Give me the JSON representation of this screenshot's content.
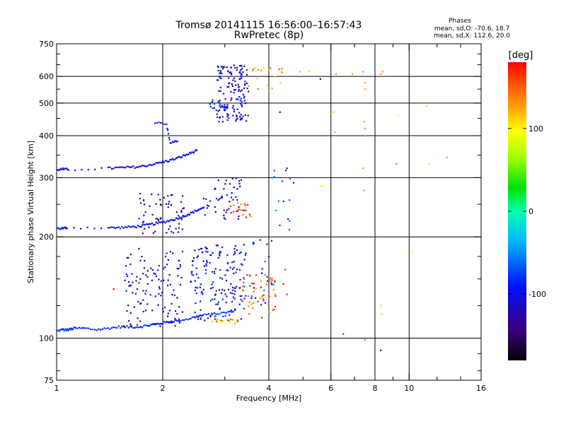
{
  "chart_data": {
    "type": "scatter",
    "title": "Tromsø 20141115 16:56:00–16:57:43",
    "subtitle": "RwPretec (8p)",
    "xlabel": "Frequency [MHz]",
    "ylabel": "Stationary phase Virtual Height [km]",
    "x_scale": "log",
    "y_scale": "log",
    "xlim": [
      1,
      16
    ],
    "ylim": [
      75,
      750
    ],
    "x_ticks": [
      1,
      2,
      4,
      6,
      8,
      10,
      16
    ],
    "y_ticks": [
      75,
      100,
      200,
      300,
      400,
      500,
      600,
      750
    ],
    "x_minor_ticks": [
      3,
      5,
      7,
      9,
      12,
      14
    ],
    "y_minor_ticks": [
      80,
      90,
      125,
      150,
      175,
      250,
      350,
      450,
      550,
      650,
      700
    ],
    "grid": true,
    "grid_x": [
      2,
      4,
      6,
      8,
      10
    ],
    "grid_y": [
      100,
      200,
      300,
      400,
      500,
      600
    ],
    "phases_box": {
      "title": "Phases",
      "line1": "mean, sd,O: -70.6, 18.7",
      "line2": "mean, sd,X: 112.6, 20.0"
    },
    "colorbar": {
      "label": "[deg]",
      "range": [
        -180,
        180
      ],
      "ticks": [
        -100,
        0,
        100
      ],
      "colors": [
        "#000000",
        "#3a0078",
        "#0010ff",
        "#00b8ff",
        "#00ffb0",
        "#00e000",
        "#a0ff00",
        "#ffff00",
        "#ffa000",
        "#ff5000",
        "#ff0000"
      ]
    },
    "traces": [
      {
        "points": [
          [
            1.0,
            105
          ],
          [
            1.04,
            106
          ],
          [
            1.08,
            106
          ],
          [
            1.12,
            107
          ],
          [
            1.2,
            107
          ],
          [
            1.3,
            106
          ],
          [
            1.4,
            107
          ],
          [
            1.5,
            108
          ],
          [
            1.6,
            108
          ],
          [
            1.7,
            108
          ],
          [
            1.8,
            109
          ],
          [
            1.9,
            110
          ],
          [
            2.0,
            111
          ],
          [
            2.1,
            112
          ],
          [
            2.2,
            113
          ],
          [
            2.35,
            114
          ],
          [
            2.5,
            116
          ],
          [
            2.6,
            117
          ],
          [
            2.8,
            118
          ],
          [
            3.0,
            119
          ],
          [
            3.2,
            121
          ]
        ],
        "phase": -85
      },
      {
        "points": [
          [
            1.0,
            212
          ],
          [
            1.04,
            212
          ],
          [
            1.07,
            213
          ],
          [
            1.4,
            213
          ],
          [
            1.5,
            213
          ],
          [
            1.6,
            214
          ],
          [
            1.7,
            215
          ],
          [
            1.8,
            217
          ],
          [
            1.9,
            219
          ],
          [
            2.0,
            221
          ],
          [
            2.1,
            224
          ],
          [
            2.2,
            227
          ],
          [
            2.3,
            231
          ],
          [
            2.4,
            235
          ],
          [
            2.5,
            240
          ],
          [
            2.6,
            244
          ]
        ],
        "phase": -95
      },
      {
        "points": [
          [
            1.0,
            317
          ],
          [
            1.04,
            318
          ],
          [
            1.08,
            317
          ],
          [
            1.4,
            320
          ],
          [
            1.5,
            321
          ],
          [
            1.6,
            322
          ],
          [
            1.7,
            323
          ],
          [
            1.8,
            326
          ],
          [
            1.9,
            330
          ],
          [
            2.0,
            334
          ],
          [
            2.1,
            338
          ],
          [
            2.2,
            343
          ],
          [
            2.3,
            349
          ],
          [
            2.4,
            355
          ],
          [
            2.5,
            362
          ]
        ],
        "phase": -100
      },
      {
        "points": [
          [
            1.9,
            438
          ],
          [
            2.05,
            430
          ],
          [
            2.1,
            380
          ],
          [
            2.2,
            385
          ]
        ],
        "phase": -95
      }
    ],
    "clusters": [
      {
        "x": [
          1.55,
          2.3
        ],
        "y": [
          108,
          185
        ],
        "n": 120,
        "phase": -110
      },
      {
        "x": [
          2.4,
          3.4
        ],
        "y": [
          112,
          190
        ],
        "n": 160,
        "phase": -100
      },
      {
        "x": [
          3.3,
          4.2
        ],
        "y": [
          125,
          200
        ],
        "n": 40,
        "phase": -80
      },
      {
        "x": [
          1.7,
          2.3
        ],
        "y": [
          205,
          270
        ],
        "n": 60,
        "phase": -115
      },
      {
        "x": [
          2.6,
          3.4
        ],
        "y": [
          225,
          300
        ],
        "n": 50,
        "phase": -110
      },
      {
        "x": [
          2.85,
          3.5
        ],
        "y": [
          440,
          650
        ],
        "n": 150,
        "phase": -105
      },
      {
        "x": [
          2.7,
          3.0
        ],
        "y": [
          470,
          520
        ],
        "n": 15,
        "phase": -90
      },
      {
        "x": [
          3.3,
          4.2
        ],
        "y": [
          115,
          155
        ],
        "n": 50,
        "phase": 150
      },
      {
        "x": [
          2.7,
          3.3
        ],
        "y": [
          110,
          114
        ],
        "n": 20,
        "phase": 115
      },
      {
        "x": [
          3.1,
          3.6
        ],
        "y": [
          228,
          255
        ],
        "n": 20,
        "phase": 150
      },
      {
        "x": [
          3.5,
          4.4
        ],
        "y": [
          540,
          640
        ],
        "n": 20,
        "phase": 130
      },
      {
        "x": [
          4.0,
          4.6
        ],
        "y": [
          200,
          320
        ],
        "n": 15,
        "phase": -70
      }
    ],
    "scattered": [
      {
        "x": 4.4,
        "y": 145,
        "phase": 175
      },
      {
        "x": 4.45,
        "y": 160,
        "phase": 160
      },
      {
        "x": 4.5,
        "y": 135,
        "phase": 170
      },
      {
        "x": 4.9,
        "y": 620,
        "phase": 120
      },
      {
        "x": 5.2,
        "y": 620,
        "phase": 110
      },
      {
        "x": 5.6,
        "y": 590,
        "phase": -110
      },
      {
        "x": 5.7,
        "y": 283,
        "phase": 100
      },
      {
        "x": 5.6,
        "y": 283,
        "phase": 105
      },
      {
        "x": 6.1,
        "y": 470,
        "phase": 110
      },
      {
        "x": 6.15,
        "y": 410,
        "phase": 120
      },
      {
        "x": 6.2,
        "y": 610,
        "phase": 130
      },
      {
        "x": 6.5,
        "y": 103,
        "phase": 175
      },
      {
        "x": 6.9,
        "y": 610,
        "phase": 130
      },
      {
        "x": 7.4,
        "y": 620,
        "phase": 130
      },
      {
        "x": 7.5,
        "y": 575,
        "phase": 130
      },
      {
        "x": 7.5,
        "y": 550,
        "phase": 130
      },
      {
        "x": 7.45,
        "y": 440,
        "phase": 130
      },
      {
        "x": 7.5,
        "y": 420,
        "phase": 130
      },
      {
        "x": 7.5,
        "y": 400,
        "phase": 130
      },
      {
        "x": 7.4,
        "y": 320,
        "phase": 130
      },
      {
        "x": 7.45,
        "y": 275,
        "phase": 130
      },
      {
        "x": 7.5,
        "y": 99,
        "phase": 150
      },
      {
        "x": 8.3,
        "y": 610,
        "phase": 130
      },
      {
        "x": 8.4,
        "y": 620,
        "phase": 130
      },
      {
        "x": 8.3,
        "y": 125,
        "phase": 110
      },
      {
        "x": 8.35,
        "y": 118,
        "phase": 110
      },
      {
        "x": 8.3,
        "y": 92,
        "phase": -120
      },
      {
        "x": 9.2,
        "y": 330,
        "phase": -20
      },
      {
        "x": 9.3,
        "y": 460,
        "phase": 100
      },
      {
        "x": 10.2,
        "y": 180,
        "phase": 100
      },
      {
        "x": 11.2,
        "y": 490,
        "phase": 110
      },
      {
        "x": 11.4,
        "y": 330,
        "phase": 100
      },
      {
        "x": 12.8,
        "y": 345,
        "phase": 130
      },
      {
        "x": 4.3,
        "y": 470,
        "phase": -90
      },
      {
        "x": 4.5,
        "y": 320,
        "phase": -110
      },
      {
        "x": 4.7,
        "y": 290,
        "phase": -120
      },
      {
        "x": 1.45,
        "y": 140,
        "phase": 180
      },
      {
        "x": 1.05,
        "y": 105,
        "phase": -30
      }
    ]
  }
}
